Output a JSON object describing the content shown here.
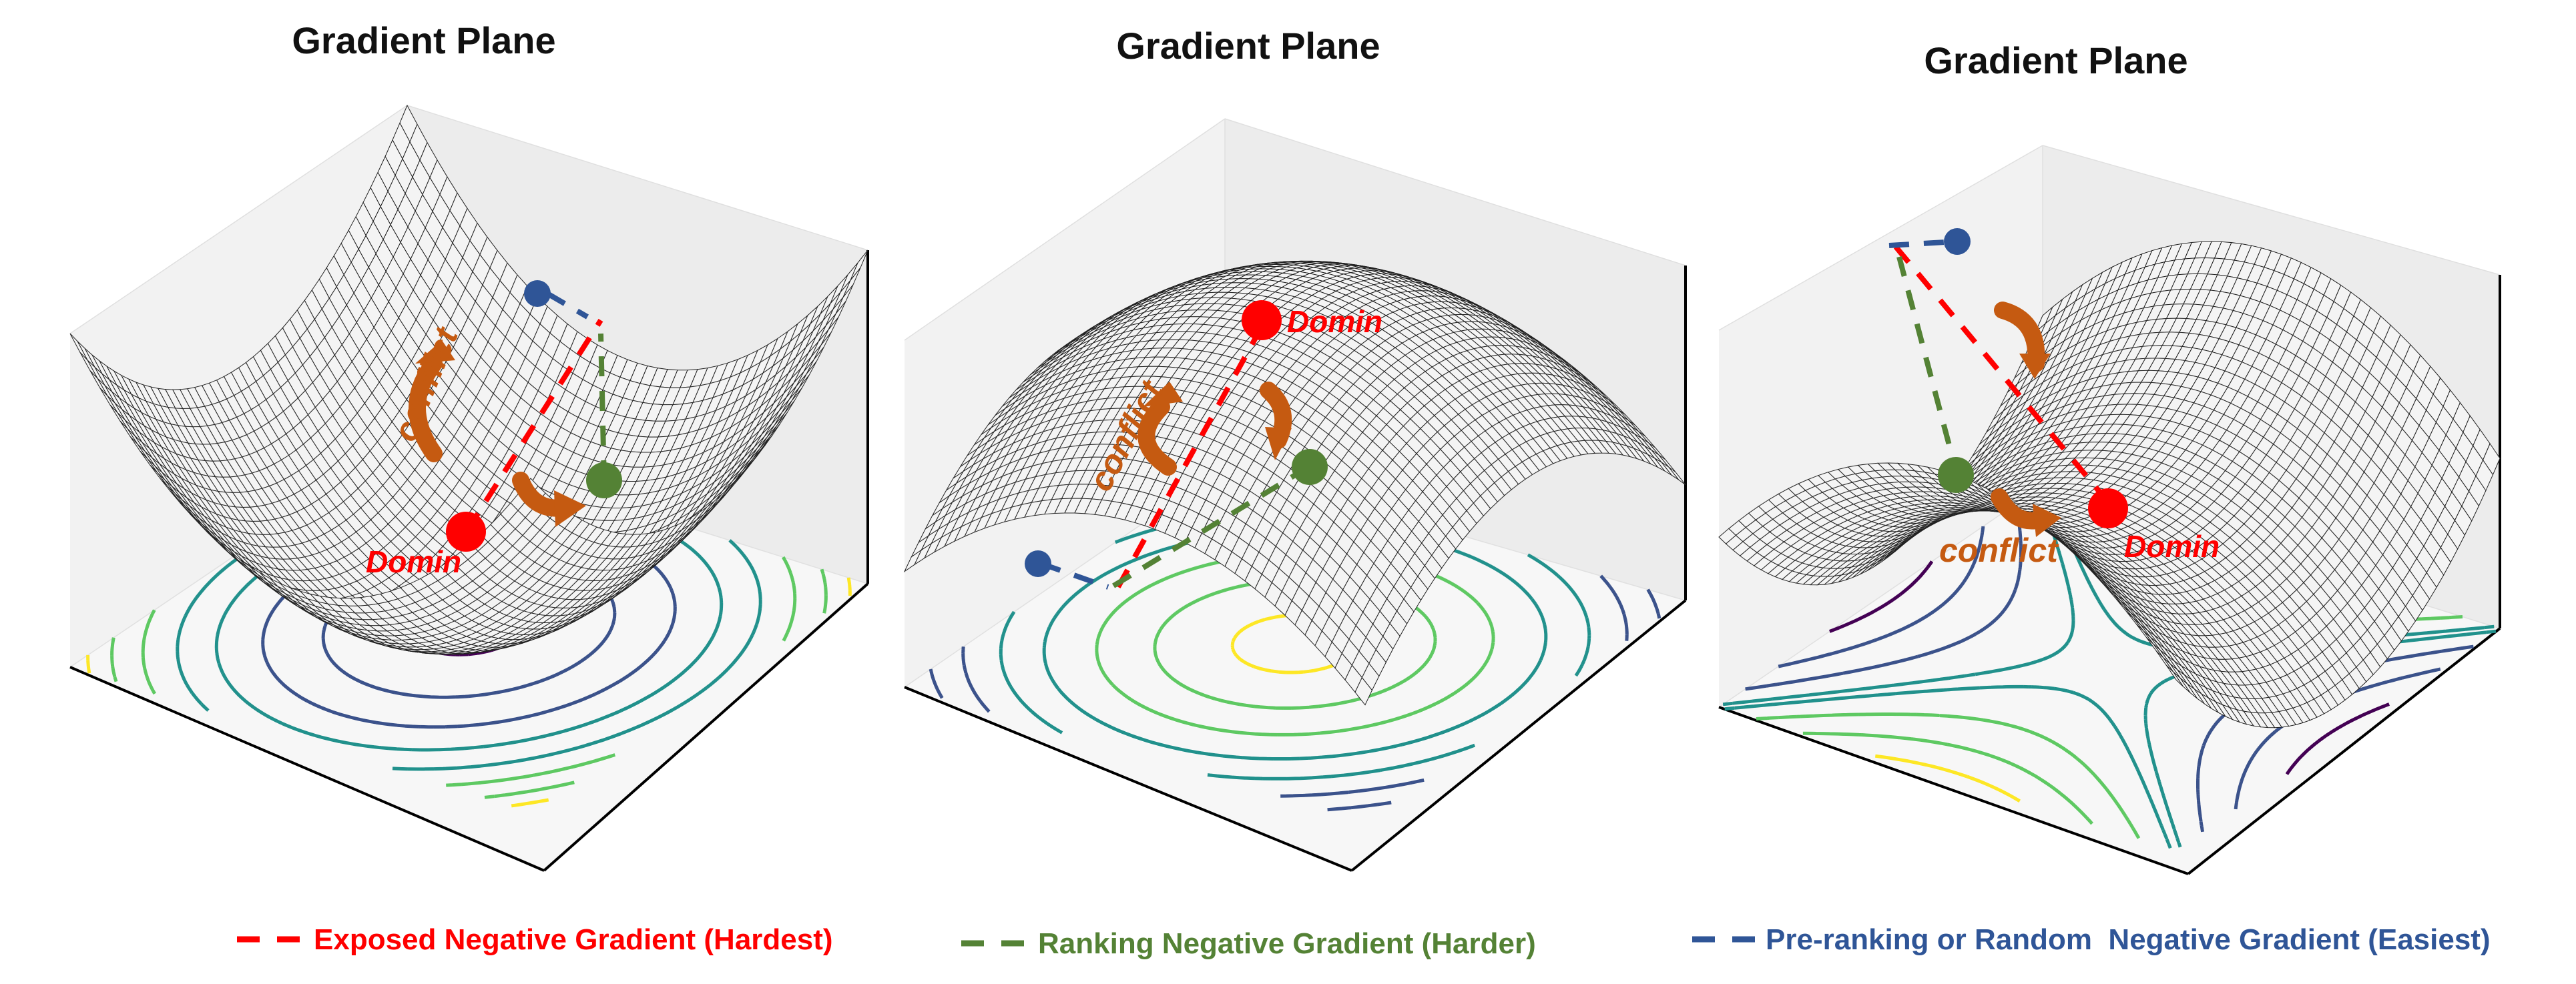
{
  "panels": [
    {
      "title": "Gradient Plane",
      "surface": "bowl",
      "dominant_label": "Domin",
      "conflict_label": "conflict"
    },
    {
      "title": "Gradient Plane",
      "surface": "dome",
      "dominant_label": "Domin",
      "conflict_label": "conflict"
    },
    {
      "title": "Gradient Plane",
      "surface": "saddle",
      "dominant_label": "Domin",
      "conflict_label": "conflict"
    }
  ],
  "legend": [
    {
      "label": "Exposed Negative Gradient (Hardest)",
      "color": "#ff0000"
    },
    {
      "label": "Ranking Negative Gradient (Harder)",
      "color": "#548235"
    },
    {
      "label": "Pre-ranking or Random  Negative Gradient (Easiest)",
      "color": "#2f5597"
    }
  ],
  "colors": {
    "dominant": "#ff0000",
    "ranking": "#548235",
    "preranking": "#2f5597",
    "conflict": "#c55a11",
    "contours": [
      "#440154",
      "#3b528b",
      "#21918c",
      "#5ec962",
      "#fde725"
    ]
  }
}
